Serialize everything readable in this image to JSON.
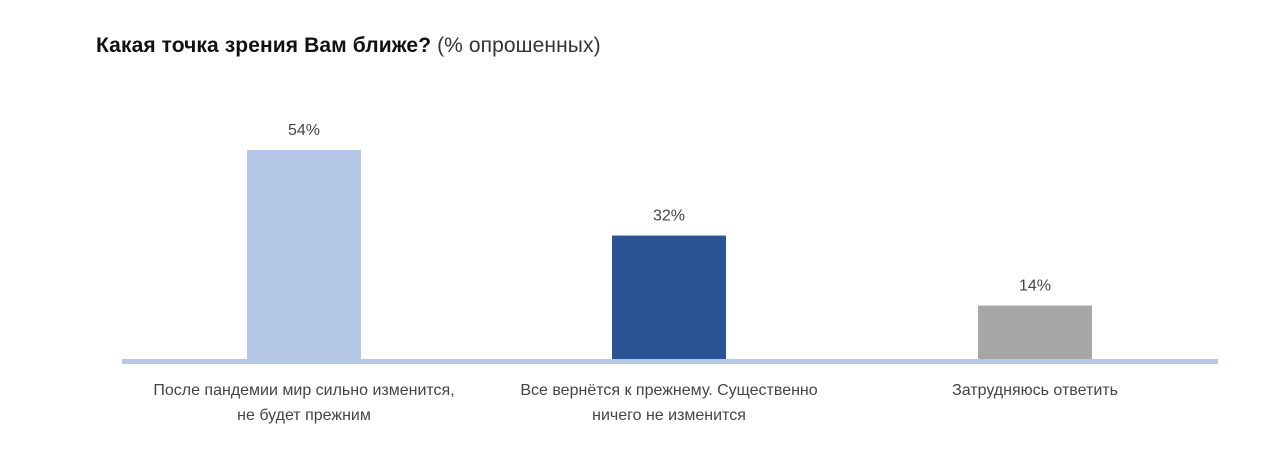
{
  "title": {
    "main": "Какая точка зрения Вам ближе?",
    "sub": "(% опрошенных)"
  },
  "chart_data": {
    "type": "bar",
    "title": "Какая точка зрения Вам ближе? (% опрошенных)",
    "categories": [
      [
        "После пандемии мир сильно изменится,",
        "не будет прежним"
      ],
      [
        "Все вернётся к прежнему. Существенно",
        "ничего не изменится"
      ],
      [
        "Затрудняюсь ответить"
      ]
    ],
    "values": [
      54,
      32,
      14
    ],
    "value_labels": [
      "54%",
      "32%",
      "14%"
    ],
    "colors": [
      "#b4c7e7",
      "#2b5496",
      "#a6a6a6"
    ],
    "axis_color": "#b4c7e7",
    "ylim": [
      0,
      54
    ],
    "grid": false,
    "legend": "none"
  }
}
